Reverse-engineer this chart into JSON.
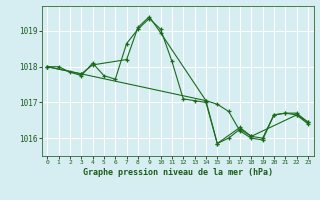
{
  "background_color": "#d6eef2",
  "grid_color": "#b8d8dd",
  "line_color": "#1a6b1a",
  "marker_color": "#1a6b1a",
  "title": "Graphe pression niveau de la mer (hPa)",
  "xlim": [
    -0.5,
    23.5
  ],
  "ylim": [
    1015.5,
    1019.7
  ],
  "yticks": [
    1016,
    1017,
    1018,
    1019
  ],
  "xticks": [
    0,
    1,
    2,
    3,
    4,
    5,
    6,
    7,
    8,
    9,
    10,
    11,
    12,
    13,
    14,
    15,
    16,
    17,
    18,
    19,
    20,
    21,
    22,
    23
  ],
  "series": [
    {
      "x": [
        0,
        1,
        2,
        3,
        4,
        5,
        6,
        7,
        8,
        9,
        10,
        11,
        12,
        13,
        14,
        15,
        16,
        17,
        18,
        19,
        20,
        21,
        22,
        23
      ],
      "y": [
        1018.0,
        1018.0,
        1017.85,
        1017.75,
        1018.1,
        1017.75,
        1017.65,
        1018.65,
        1019.05,
        1019.35,
        1019.05,
        1018.15,
        1017.1,
        1017.05,
        1017.0,
        1015.85,
        1016.0,
        1016.25,
        1016.05,
        1016.0,
        1016.65,
        1016.7,
        1016.7,
        1016.45
      ]
    },
    {
      "x": [
        0,
        3,
        4,
        7,
        8,
        9,
        10,
        14,
        15,
        16,
        17,
        18,
        19,
        20,
        21,
        22,
        23
      ],
      "y": [
        1018.0,
        1017.8,
        1018.05,
        1018.2,
        1019.1,
        1019.4,
        1018.95,
        1017.05,
        1016.95,
        1016.75,
        1016.2,
        1016.0,
        1015.95,
        1016.65,
        1016.7,
        1016.65,
        1016.45
      ]
    },
    {
      "x": [
        0,
        3,
        14,
        15,
        17,
        18,
        22,
        23
      ],
      "y": [
        1018.0,
        1017.8,
        1017.05,
        1015.85,
        1016.3,
        1016.05,
        1016.65,
        1016.4
      ]
    }
  ]
}
